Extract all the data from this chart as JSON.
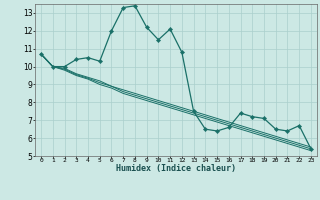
{
  "title": "",
  "xlabel": "Humidex (Indice chaleur)",
  "ylabel": "",
  "bg_color": "#cce8e4",
  "line_color": "#1a7068",
  "grid_color": "#aacfcc",
  "xlim": [
    -0.5,
    23.5
  ],
  "ylim": [
    5,
    13.5
  ],
  "yticks": [
    5,
    6,
    7,
    8,
    9,
    10,
    11,
    12,
    13
  ],
  "xticks": [
    0,
    1,
    2,
    3,
    4,
    5,
    6,
    7,
    8,
    9,
    10,
    11,
    12,
    13,
    14,
    15,
    16,
    17,
    18,
    19,
    20,
    21,
    22,
    23
  ],
  "series": [
    [
      10.7,
      10.0,
      10.0,
      10.4,
      10.5,
      10.3,
      12.0,
      13.3,
      13.4,
      12.2,
      11.5,
      12.1,
      10.8,
      7.5,
      6.5,
      6.4,
      6.6,
      7.4,
      7.2,
      7.1,
      6.5,
      6.4,
      6.7,
      5.4
    ],
    [
      10.7,
      10.0,
      9.9,
      9.6,
      9.4,
      9.2,
      8.9,
      8.7,
      8.5,
      8.3,
      8.1,
      7.9,
      7.7,
      7.5,
      7.3,
      7.1,
      6.9,
      6.7,
      6.5,
      6.3,
      6.1,
      5.9,
      5.7,
      5.5
    ],
    [
      10.7,
      10.0,
      9.85,
      9.55,
      9.35,
      9.1,
      8.9,
      8.6,
      8.4,
      8.2,
      8.0,
      7.8,
      7.6,
      7.4,
      7.2,
      7.0,
      6.8,
      6.6,
      6.4,
      6.2,
      6.0,
      5.8,
      5.6,
      5.4
    ],
    [
      10.7,
      10.0,
      9.8,
      9.5,
      9.3,
      9.0,
      8.8,
      8.5,
      8.3,
      8.1,
      7.9,
      7.7,
      7.5,
      7.3,
      7.1,
      6.9,
      6.7,
      6.5,
      6.3,
      6.1,
      5.9,
      5.7,
      5.5,
      5.3
    ]
  ]
}
